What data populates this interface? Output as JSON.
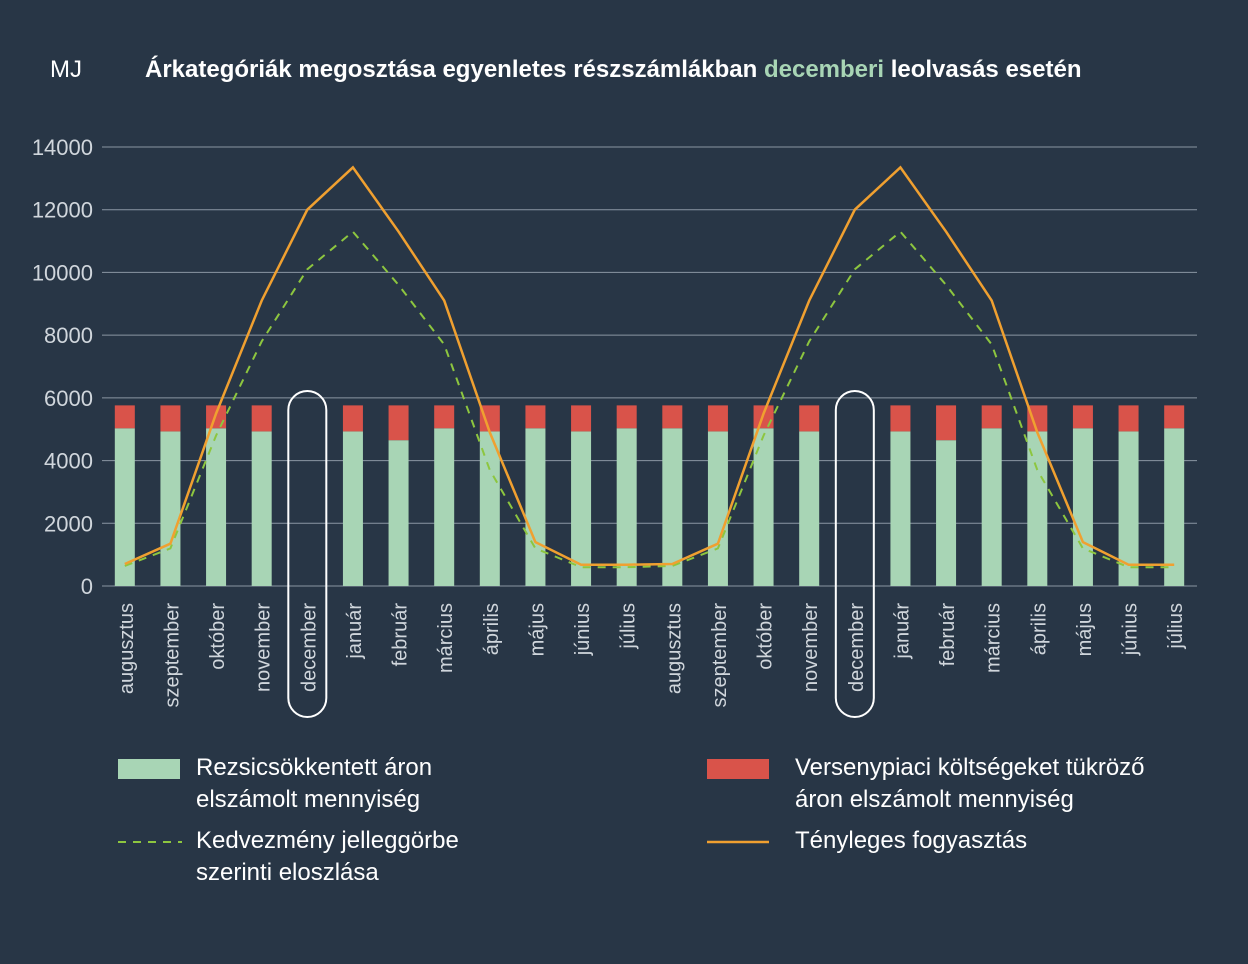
{
  "chart_data": {
    "type": "bar",
    "unit_label": "MJ",
    "title": {
      "part1": "Árkategóriák megosztása  egyenletes részszámlákban ",
      "highlight": "decemberi",
      "part2": " leolvasás esetén"
    },
    "ylim": [
      0,
      14000
    ],
    "yticks": [
      0,
      2000,
      4000,
      6000,
      8000,
      10000,
      12000,
      14000
    ],
    "grid": true,
    "categories": [
      "augusztus",
      "szeptember",
      "október",
      "november",
      "december",
      "január",
      "február",
      "március",
      "április",
      "május",
      "június",
      "július",
      "augusztus",
      "szeptember",
      "október",
      "november",
      "december",
      "január",
      "február",
      "március",
      "április",
      "május",
      "június",
      "július"
    ],
    "highlighted_categories": [
      4,
      16
    ],
    "series": [
      {
        "name": "Rezsicsökkentett áron elszámolt mennyiség",
        "kind": "bar",
        "color": "#a8d5b5",
        "values": [
          5030,
          4930,
          5030,
          4930,
          null,
          4930,
          4650,
          5030,
          4930,
          5030,
          4930,
          5030,
          5030,
          4930,
          5030,
          4930,
          null,
          4930,
          4650,
          5030,
          4930,
          5030,
          4930,
          5030
        ]
      },
      {
        "name": "Versenypiaci költségeket tükröző áron elszámolt mennyiség",
        "kind": "bar",
        "color": "#d9534a",
        "values": [
          730,
          830,
          730,
          830,
          null,
          830,
          1110,
          730,
          830,
          730,
          830,
          730,
          730,
          830,
          730,
          830,
          null,
          830,
          1110,
          730,
          830,
          730,
          830,
          730
        ]
      },
      {
        "name": "Kedvezmény jelleggörbe szerinti eloszlása",
        "kind": "line-dashed",
        "color": "#8dc63f",
        "values": [
          640,
          1200,
          4800,
          7800,
          10100,
          11300,
          9600,
          7700,
          3700,
          1200,
          600,
          600,
          640,
          1200,
          4800,
          7800,
          10100,
          11300,
          9600,
          7700,
          3700,
          1200,
          600,
          600
        ]
      },
      {
        "name": "Tényleges fogyasztás",
        "kind": "line",
        "color": "#f0a030",
        "values": [
          700,
          1350,
          5500,
          9100,
          12000,
          13350,
          11300,
          9100,
          4900,
          1400,
          680,
          680,
          700,
          1350,
          5500,
          9100,
          12000,
          13350,
          11300,
          9100,
          4900,
          1400,
          680,
          680
        ]
      }
    ],
    "legend": {
      "green": {
        "line1": "Rezsicsökkentett áron",
        "line2": "elszámolt mennyiség"
      },
      "red": {
        "line1": "Versenypiaci költségeket tükröző",
        "line2": "áron elszámolt mennyiség"
      },
      "dashed": {
        "line1": "Kedvezmény jelleggörbe",
        "line2": "szerinti eloszlása"
      },
      "solid": {
        "line1": "Tényleges fogyasztás"
      }
    },
    "colors": {
      "background": "#283646",
      "grid": "#8a96a3",
      "text": "#ffffff",
      "tick": "#d0d6dc",
      "highlight_title": "#a8d5b5"
    }
  }
}
